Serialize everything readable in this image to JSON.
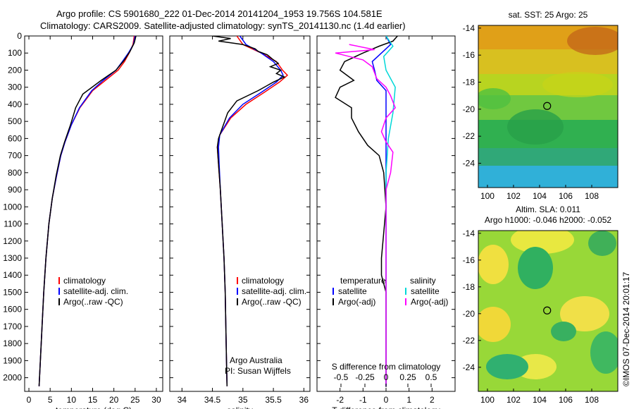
{
  "header": {
    "title_line1": "Argo profile: CS 5901680_222 01-Dec-2014 20141204_1953 19.756S 104.581E",
    "title_line2": "Climatology: CARS2009. Satellite-adjusted climatology: synTS_20141130.nc (1.4d earlier)"
  },
  "chart_data": [
    {
      "id": "temperature",
      "type": "line",
      "xlabel": "temperature (deg C)",
      "ylabel": "",
      "xlim": [
        -1,
        31.5
      ],
      "ylim": [
        2080,
        0
      ],
      "xticks": [
        0,
        5,
        10,
        15,
        20,
        25,
        30
      ],
      "yticks": [
        0,
        100,
        200,
        300,
        400,
        500,
        600,
        700,
        800,
        900,
        1000,
        1100,
        1200,
        1300,
        1400,
        1500,
        1600,
        1700,
        1800,
        1900,
        2000
      ],
      "legend": [
        "climatology",
        "satellite-adj. clim.",
        "Argo(..raw -QC)"
      ],
      "legend_placement": "lower-center",
      "series": [
        {
          "name": "climatology",
          "color": "#ff0000",
          "points": [
            [
              24.8,
              0
            ],
            [
              24.5,
              50
            ],
            [
              23.6,
              100
            ],
            [
              22.5,
              150
            ],
            [
              21.0,
              200
            ],
            [
              18.0,
              260
            ],
            [
              15.0,
              320
            ],
            [
              12.0,
              420
            ],
            [
              10.0,
              520
            ],
            [
              8.5,
              620
            ],
            [
              7.5,
              700
            ],
            [
              6.5,
              820
            ],
            [
              5.5,
              950
            ],
            [
              4.7,
              1100
            ],
            [
              4.0,
              1300
            ],
            [
              3.5,
              1500
            ],
            [
              3.1,
              1700
            ],
            [
              2.7,
              1900
            ],
            [
              2.4,
              2050
            ]
          ]
        },
        {
          "name": "satellite-adj. clim.",
          "color": "#0000ff",
          "points": [
            [
              25.0,
              0
            ],
            [
              24.6,
              50
            ],
            [
              23.4,
              100
            ],
            [
              22.0,
              150
            ],
            [
              20.5,
              200
            ],
            [
              17.5,
              260
            ],
            [
              14.8,
              320
            ],
            [
              11.9,
              420
            ],
            [
              10.0,
              520
            ],
            [
              8.5,
              620
            ],
            [
              7.5,
              700
            ],
            [
              6.5,
              820
            ],
            [
              5.5,
              950
            ],
            [
              4.7,
              1100
            ],
            [
              4.0,
              1300
            ],
            [
              3.5,
              1500
            ],
            [
              3.1,
              1700
            ],
            [
              2.7,
              1900
            ],
            [
              2.4,
              2050
            ]
          ]
        },
        {
          "name": "Argo(..raw -QC)",
          "color": "#000000",
          "points": [
            [
              25.2,
              0
            ],
            [
              24.8,
              40
            ],
            [
              23.8,
              90
            ],
            [
              22.5,
              140
            ],
            [
              20.5,
              200
            ],
            [
              17.0,
              260
            ],
            [
              12.7,
              340
            ],
            [
              11.0,
              420
            ],
            [
              9.8,
              520
            ],
            [
              8.4,
              620
            ],
            [
              7.4,
              700
            ],
            [
              6.4,
              820
            ],
            [
              5.5,
              950
            ],
            [
              4.7,
              1100
            ],
            [
              4.0,
              1300
            ],
            [
              3.5,
              1500
            ],
            [
              3.1,
              1700
            ],
            [
              2.7,
              1900
            ],
            [
              2.4,
              2050
            ]
          ]
        }
      ]
    },
    {
      "id": "salinity",
      "type": "line",
      "xlabel": "salinity",
      "xlim": [
        33.8,
        36.1
      ],
      "ylim": [
        2080,
        0
      ],
      "xticks": [
        34,
        34.5,
        35,
        35.5,
        36
      ],
      "legend": [
        "climatology",
        "satellite-adj. clim.",
        "Argo(..raw -QC)"
      ],
      "legend_placement": "lower-right",
      "annotations": [
        "Argo Australia",
        "PI: Susan Wijffels"
      ],
      "series": [
        {
          "name": "climatology",
          "color": "#ff0000",
          "points": [
            [
              34.9,
              0
            ],
            [
              35.0,
              50
            ],
            [
              35.3,
              100
            ],
            [
              35.55,
              150
            ],
            [
              35.65,
              200
            ],
            [
              35.73,
              230
            ],
            [
              35.6,
              270
            ],
            [
              35.35,
              330
            ],
            [
              35.05,
              400
            ],
            [
              34.8,
              480
            ],
            [
              34.62,
              580
            ],
            [
              34.58,
              650
            ],
            [
              34.6,
              750
            ],
            [
              34.63,
              900
            ],
            [
              34.66,
              1100
            ],
            [
              34.69,
              1300
            ],
            [
              34.71,
              1500
            ],
            [
              34.72,
              1700
            ],
            [
              34.73,
              1900
            ],
            [
              34.74,
              2050
            ]
          ]
        },
        {
          "name": "satellite-adj. clim.",
          "color": "#0000ff",
          "points": [
            [
              34.95,
              0
            ],
            [
              35.05,
              50
            ],
            [
              35.3,
              100
            ],
            [
              35.5,
              150
            ],
            [
              35.62,
              200
            ],
            [
              35.66,
              230
            ],
            [
              35.55,
              270
            ],
            [
              35.3,
              330
            ],
            [
              35.0,
              400
            ],
            [
              34.78,
              480
            ],
            [
              34.62,
              580
            ],
            [
              34.6,
              650
            ],
            [
              34.61,
              750
            ],
            [
              34.63,
              900
            ],
            [
              34.66,
              1100
            ],
            [
              34.69,
              1300
            ],
            [
              34.71,
              1500
            ],
            [
              34.72,
              1700
            ],
            [
              34.73,
              1900
            ],
            [
              34.74,
              2050
            ]
          ]
        },
        {
          "name": "Argo(..raw -QC)",
          "color": "#000000",
          "points": [
            [
              34.5,
              0
            ],
            [
              34.8,
              15
            ],
            [
              34.6,
              30
            ],
            [
              35.0,
              50
            ],
            [
              35.2,
              75
            ],
            [
              35.25,
              90
            ],
            [
              35.4,
              110
            ],
            [
              35.5,
              140
            ],
            [
              35.58,
              160
            ],
            [
              35.45,
              180
            ],
            [
              35.62,
              200
            ],
            [
              35.55,
              220
            ],
            [
              35.68,
              240
            ],
            [
              35.5,
              270
            ],
            [
              35.25,
              320
            ],
            [
              34.9,
              380
            ],
            [
              34.75,
              450
            ],
            [
              34.68,
              520
            ],
            [
              34.6,
              600
            ],
            [
              34.58,
              650
            ],
            [
              34.6,
              750
            ],
            [
              34.63,
              900
            ],
            [
              34.66,
              1100
            ],
            [
              34.69,
              1300
            ],
            [
              34.71,
              1500
            ],
            [
              34.72,
              1700
            ],
            [
              34.73,
              1900
            ],
            [
              34.74,
              2050
            ]
          ]
        }
      ]
    },
    {
      "id": "difference",
      "type": "line",
      "xlabel": "T difference from climatology",
      "xlabel_top": "S difference from climatology",
      "xlim": [
        -3,
        3
      ],
      "ylim": [
        2080,
        0
      ],
      "xticks_T": [
        -2,
        -1,
        0,
        1,
        2
      ],
      "xticks_S_labels": [
        "-0.5",
        "-0.25",
        "0",
        "0.25",
        "0.5"
      ],
      "legend_headers": [
        "temperature",
        "salinity"
      ],
      "legend": [
        "satellite",
        "Argo(-adj)",
        "satellite",
        "Argo(-adj)"
      ],
      "series": [
        {
          "name": "T satellite",
          "color": "#0000ff",
          "points": [
            [
              0.0,
              0
            ],
            [
              0.2,
              50
            ],
            [
              -0.2,
              100
            ],
            [
              -0.6,
              150
            ],
            [
              -0.5,
              200
            ],
            [
              -0.4,
              260
            ],
            [
              0.0,
              320
            ],
            [
              0.0,
              450
            ],
            [
              0.0,
              700
            ],
            [
              0.0,
              1000
            ],
            [
              0.0,
              1400
            ],
            [
              0.0,
              2050
            ]
          ]
        },
        {
          "name": "T Argo(-adj)",
          "color": "#000000",
          "points": [
            [
              0.5,
              0
            ],
            [
              0.3,
              30
            ],
            [
              -0.3,
              60
            ],
            [
              -1.0,
              100
            ],
            [
              -1.8,
              150
            ],
            [
              -2.0,
              200
            ],
            [
              -1.4,
              260
            ],
            [
              -2.0,
              300
            ],
            [
              -2.2,
              360
            ],
            [
              -1.5,
              420
            ],
            [
              -1.5,
              480
            ],
            [
              -1.2,
              560
            ],
            [
              -0.8,
              640
            ],
            [
              -0.3,
              700
            ],
            [
              -0.1,
              800
            ],
            [
              0.0,
              1000
            ],
            [
              -0.2,
              1300
            ],
            [
              -0.2,
              1400
            ],
            [
              0.0,
              1500
            ],
            [
              0.0,
              2050
            ]
          ]
        },
        {
          "name": "S satellite",
          "color": "#00d8d8",
          "points": [
            [
              0.0,
              0
            ],
            [
              0.3,
              60
            ],
            [
              -0.1,
              120
            ],
            [
              0.0,
              200
            ],
            [
              0.4,
              300
            ],
            [
              0.3,
              450
            ],
            [
              0.1,
              600
            ],
            [
              0.0,
              800
            ],
            [
              0.0,
              1100
            ],
            [
              0.0,
              2050
            ]
          ]
        },
        {
          "name": "S Argo(-adj)",
          "color": "#ff00ff",
          "points": [
            [
              -1.6,
              50
            ],
            [
              -0.5,
              80
            ],
            [
              -2.2,
              100
            ],
            [
              -1.0,
              140
            ],
            [
              -0.6,
              180
            ],
            [
              -0.4,
              250
            ],
            [
              0.0,
              300
            ],
            [
              0.2,
              350
            ],
            [
              0.4,
              420
            ],
            [
              0.0,
              480
            ],
            [
              -0.2,
              560
            ],
            [
              0.0,
              620
            ],
            [
              0.3,
              680
            ],
            [
              0.2,
              800
            ],
            [
              0.0,
              900
            ],
            [
              0.0,
              2050
            ]
          ]
        }
      ]
    },
    {
      "id": "sst_map",
      "type": "heatmap",
      "title": "sat. SST: 25  Argo: 25",
      "xlim": [
        99.3,
        110
      ],
      "ylim": [
        -25.8,
        -13.8
      ],
      "xticks": [
        100,
        102,
        104,
        106,
        108
      ],
      "yticks": [
        -14,
        -16,
        -18,
        -20,
        -22,
        -24
      ],
      "marker": [
        104.58,
        -19.76
      ]
    },
    {
      "id": "sla_map",
      "type": "heatmap",
      "title": "Altim. SLA: 0.011",
      "subtitle": "Argo h1000: -0.046 h2000: -0.052",
      "xlim": [
        99.3,
        110
      ],
      "ylim": [
        -25.8,
        -13.8
      ],
      "xticks": [
        100,
        102,
        104,
        106,
        108
      ],
      "yticks": [
        -14,
        -16,
        -18,
        -20,
        -22,
        -24
      ],
      "marker": [
        104.58,
        -19.76
      ]
    }
  ],
  "footer": {
    "credit": "©IMOS 07-Dec-2014 20:01:17"
  }
}
